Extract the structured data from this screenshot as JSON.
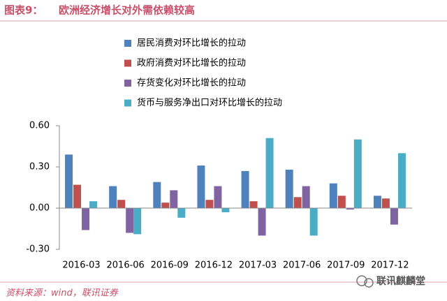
{
  "header": {
    "label": "图表9：",
    "title": "欧洲经济增长对外需依赖较高"
  },
  "chart_data": {
    "type": "bar",
    "categories": [
      "2016-03",
      "2016-06",
      "2016-09",
      "2016-12",
      "2017-03",
      "2017-06",
      "2017-09",
      "2017-12"
    ],
    "series": [
      {
        "name": "居民消费对环比增长的拉动",
        "color": "#4f81bd",
        "values": [
          0.39,
          0.16,
          0.19,
          0.31,
          0.27,
          0.28,
          0.18,
          0.09
        ]
      },
      {
        "name": "政府消费对环比增长的拉动",
        "color": "#c0504d",
        "values": [
          0.17,
          0.06,
          0.04,
          0.06,
          0.05,
          0.08,
          0.09,
          0.07
        ]
      },
      {
        "name": "存货变化对环比增长的拉动",
        "color": "#8064a2",
        "values": [
          -0.16,
          -0.18,
          0.13,
          0.16,
          -0.2,
          0.16,
          -0.01,
          -0.12
        ]
      },
      {
        "name": "货币与服务净出口对环比增长的拉动",
        "color": "#4bacc6",
        "values": [
          0.05,
          -0.19,
          -0.07,
          -0.03,
          0.51,
          -0.2,
          0.5,
          0.4
        ]
      }
    ],
    "ylim": [
      -0.3,
      0.6
    ],
    "yticks": [
      {
        "value": -0.3,
        "label": "-0.30"
      },
      {
        "value": 0,
        "label": "0.00"
      },
      {
        "value": 0.3,
        "label": "0.30"
      },
      {
        "value": 0.6,
        "label": "0.60"
      }
    ],
    "grid": false,
    "legend": "top"
  },
  "footer": {
    "source": "资料来源：wind，联讯证券",
    "watermark": "联讯麒麟堂"
  }
}
